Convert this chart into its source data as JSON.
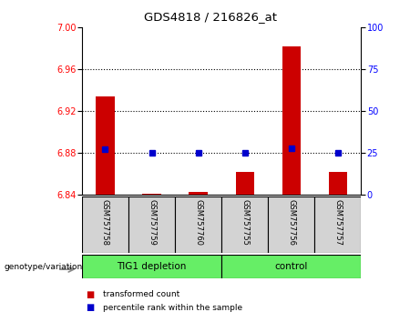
{
  "title": "GDS4818 / 216826_at",
  "samples": [
    "GSM757758",
    "GSM757759",
    "GSM757760",
    "GSM757755",
    "GSM757756",
    "GSM757757"
  ],
  "red_values": [
    6.934,
    6.841,
    6.843,
    6.862,
    6.982,
    6.862
  ],
  "blue_pct": [
    27,
    25,
    25,
    25,
    28,
    25
  ],
  "ylim_left": [
    6.84,
    7.0
  ],
  "ylim_right": [
    0,
    100
  ],
  "yticks_left": [
    6.84,
    6.88,
    6.92,
    6.96,
    7.0
  ],
  "yticks_right": [
    0,
    25,
    50,
    75,
    100
  ],
  "hlines": [
    6.88,
    6.92,
    6.96
  ],
  "bar_bottom": 6.84,
  "bar_color": "#cc0000",
  "dot_color": "#0000cc",
  "sample_box_color": "#d3d3d3",
  "group_box_color": "#66ee66",
  "group1_label": "TIG1 depletion",
  "group2_label": "control",
  "group_label": "genotype/variation",
  "legend_items": [
    "transformed count",
    "percentile rank within the sample"
  ],
  "legend_colors": [
    "#cc0000",
    "#0000cc"
  ],
  "bg_color": "#ffffff"
}
